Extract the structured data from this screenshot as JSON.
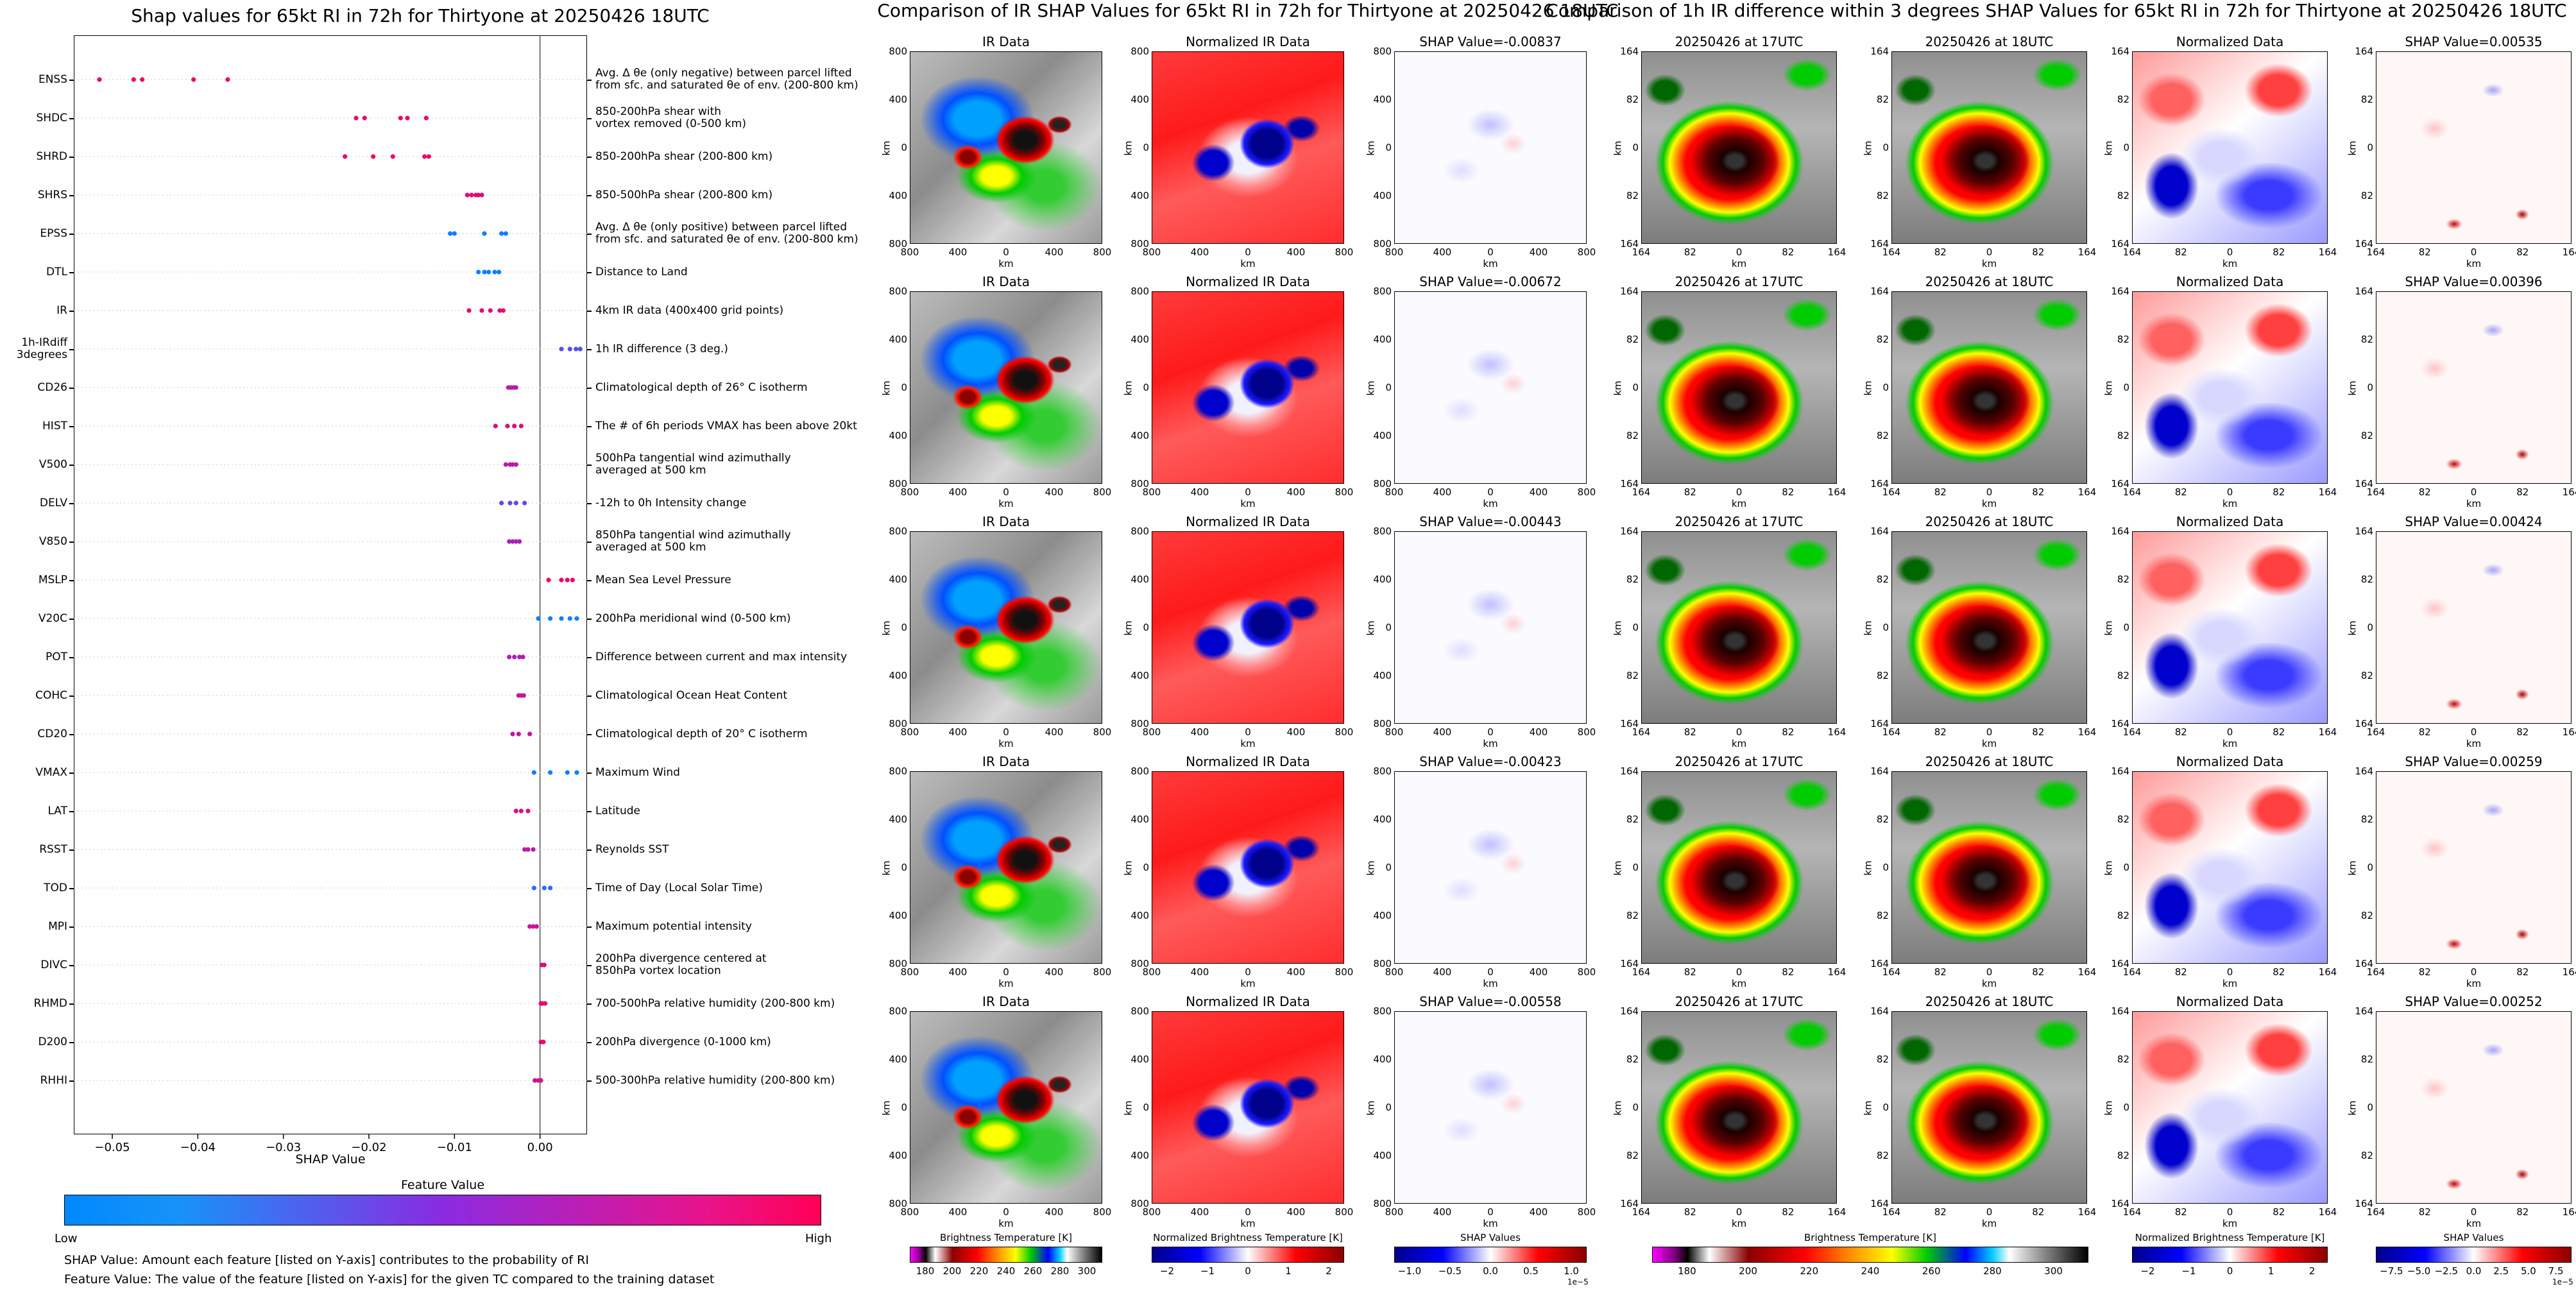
{
  "left": {
    "title": "Shap values for 65kt RI in 72h for Thirtyone at 20250426 18UTC",
    "xlabel": "SHAP Value",
    "xticks": [
      "−0.05",
      "−0.04",
      "−0.03",
      "−0.02",
      "−0.01",
      "0.00"
    ],
    "feature_value_label": "Feature Value",
    "low_label": "Low",
    "high_label": "High",
    "note1": "SHAP Value: Amount each feature [listed on Y-axis] contributes to the probability of RI",
    "note2": "Feature Value: The value of the feature [listed on Y-axis] for the given TC compared to the training dataset",
    "colors": {
      "low": "#1e88e5",
      "mid": "#8a2be2",
      "high": "#ff0052"
    }
  },
  "chart_data": {
    "type": "scatter",
    "title": "Shap values for 65kt RI in 72h for Thirtyone at 20250426 18UTC",
    "xlabel": "SHAP Value",
    "xlim": [
      -0.0545,
      0.0055
    ],
    "features": [
      {
        "name": "ENSS",
        "desc": [
          "Avg. Δ θe (only negative) between parcel lifted",
          "from sfc. and saturated θe of env. (200-800 km)"
        ],
        "values": [
          -0.0515,
          -0.0475,
          -0.0465,
          -0.0405,
          -0.0365
        ],
        "level": 0.95
      },
      {
        "name": "SHDC",
        "desc": [
          "850-200hPa shear with",
          "vortex removed (0-500 km)"
        ],
        "values": [
          -0.0215,
          -0.0205,
          -0.0163,
          -0.0155,
          -0.0133
        ],
        "level": 0.92
      },
      {
        "name": "SHRD",
        "desc": [
          "850-200hPa shear (200-800 km)"
        ],
        "values": [
          -0.0228,
          -0.0195,
          -0.0172,
          -0.0135,
          -0.013
        ],
        "level": 0.92
      },
      {
        "name": "SHRS",
        "desc": [
          "850-500hPa shear (200-800 km)"
        ],
        "values": [
          -0.0085,
          -0.008,
          -0.0075,
          -0.0072,
          -0.0068
        ],
        "level": 0.9
      },
      {
        "name": "EPSS",
        "desc": [
          "Avg. Δ θe (only positive) between parcel lifted",
          "from sfc. and saturated θe of env. (200-800 km)"
        ],
        "values": [
          -0.0105,
          -0.01,
          -0.0065,
          -0.0045,
          -0.004
        ],
        "level": 0.05
      },
      {
        "name": "DTL",
        "desc": [
          "Distance to Land"
        ],
        "values": [
          -0.0072,
          -0.0065,
          -0.006,
          -0.0053,
          -0.0048
        ],
        "level": 0.05
      },
      {
        "name": "IR",
        "desc": [
          "4km IR data (400x400 grid points)"
        ],
        "values": [
          -0.0083,
          -0.0068,
          -0.0058,
          -0.0047,
          -0.0043
        ],
        "level": 0.88
      },
      {
        "name": "1h-IRdiff\n3degrees",
        "desc": [
          "1h IR difference (3 deg.)"
        ],
        "values": [
          0.0025,
          0.0035,
          0.0042,
          0.0047
        ],
        "level": 0.3
      },
      {
        "name": "CD26",
        "desc": [
          "Climatological depth of 26° C isotherm"
        ],
        "values": [
          -0.0037,
          -0.0034,
          -0.0031,
          -0.0028
        ],
        "level": 0.65
      },
      {
        "name": "HIST",
        "desc": [
          "The # of 6h periods VMAX has been above 20kt"
        ],
        "values": [
          -0.0052,
          -0.0038,
          -0.003,
          -0.0022
        ],
        "level": 0.85
      },
      {
        "name": "V500",
        "desc": [
          "500hPa tangential wind azimuthally",
          "averaged at 500 km"
        ],
        "values": [
          -0.004,
          -0.0035,
          -0.0032,
          -0.0028
        ],
        "level": 0.7
      },
      {
        "name": "DELV",
        "desc": [
          "-12h to 0h Intensity change"
        ],
        "values": [
          -0.0045,
          -0.0035,
          -0.0028,
          -0.0018
        ],
        "level": 0.35
      },
      {
        "name": "V850",
        "desc": [
          "850hPa tangential wind azimuthally",
          "averaged at 500 km"
        ],
        "values": [
          -0.0036,
          -0.0032,
          -0.0028,
          -0.0024
        ],
        "level": 0.65
      },
      {
        "name": "MSLP",
        "desc": [
          "Mean Sea Level Pressure"
        ],
        "values": [
          0.001,
          0.0025,
          0.0032,
          0.0038
        ],
        "level": 0.95
      },
      {
        "name": "V20C",
        "desc": [
          "200hPa meridional wind (0-500 km)"
        ],
        "values": [
          -0.0002,
          0.0012,
          0.0025,
          0.0035,
          0.0043
        ],
        "level": 0.05
      },
      {
        "name": "POT",
        "desc": [
          "Difference between current and max intensity"
        ],
        "values": [
          -0.0036,
          -0.003,
          -0.0024,
          -0.002
        ],
        "level": 0.65
      },
      {
        "name": "COHC",
        "desc": [
          "Climatological Ocean Heat Content"
        ],
        "values": [
          -0.0025,
          -0.0022,
          -0.0019
        ],
        "level": 0.75
      },
      {
        "name": "CD20",
        "desc": [
          "Climatological depth of 20° C isotherm"
        ],
        "values": [
          -0.0032,
          -0.0025,
          -0.0012
        ],
        "level": 0.75
      },
      {
        "name": "VMAX",
        "desc": [
          "Maximum Wind"
        ],
        "values": [
          -0.0007,
          0.0012,
          0.0032,
          0.0043
        ],
        "level": 0.05
      },
      {
        "name": "LAT",
        "desc": [
          "Latitude"
        ],
        "values": [
          -0.0028,
          -0.0022,
          -0.0014
        ],
        "level": 0.85
      },
      {
        "name": "RSST",
        "desc": [
          "Reynolds SST"
        ],
        "values": [
          -0.0018,
          -0.0014,
          -0.0008
        ],
        "level": 0.7
      },
      {
        "name": "TOD",
        "desc": [
          "Time of Day (Local Solar Time)"
        ],
        "values": [
          -0.0007,
          0.0005,
          0.0012
        ],
        "level": 0.15
      },
      {
        "name": "MPI",
        "desc": [
          "Maximum potential intensity"
        ],
        "values": [
          -0.0012,
          -0.0008,
          -0.0004
        ],
        "level": 0.75
      },
      {
        "name": "DIVC",
        "desc": [
          "200hPa divergence centered at",
          "850hPa vortex location"
        ],
        "values": [
          0.0002,
          0.0005
        ],
        "level": 0.85
      },
      {
        "name": "RHMD",
        "desc": [
          "700-500hPa relative humidity (200-800 km)"
        ],
        "values": [
          0.0001,
          0.0003,
          0.0006
        ],
        "level": 0.9
      },
      {
        "name": "D200",
        "desc": [
          "200hPa divergence (0-1000 km)"
        ],
        "values": [
          0.0001,
          0.0004
        ],
        "level": 0.9
      },
      {
        "name": "RHHI",
        "desc": [
          "500-300hPa relative humidity (200-800 km)"
        ],
        "values": [
          -0.0006,
          -0.0002,
          0.0001
        ],
        "level": 0.8
      }
    ]
  },
  "mid": {
    "title": "Comparison of IR SHAP Values for 65kt RI in 72h for Thirtyone at 20250426 18UTC",
    "col_titles": [
      "IR Data",
      "Normalized IR Data"
    ],
    "shap_titles": [
      "SHAP Value=-0.00837",
      "SHAP Value=-0.00672",
      "SHAP Value=-0.00443",
      "SHAP Value=-0.00423",
      "SHAP Value=-0.00558"
    ],
    "xticks": [
      "800",
      "400",
      "0",
      "400",
      "800"
    ],
    "yticks": [
      "800",
      "400",
      "0",
      "400",
      "800"
    ],
    "axis_label": "km",
    "cb_labels": [
      "Brightness Temperature [K]",
      "Normalized Brightness Temperature [K]",
      "SHAP Values"
    ],
    "cb_ticks": [
      [
        "180",
        "200",
        "220",
        "240",
        "260",
        "280",
        "300"
      ],
      [
        "−2",
        "−1",
        "0",
        "1",
        "2"
      ],
      [
        "−1.0",
        "−0.5",
        "0.0",
        "0.5",
        "1.0"
      ]
    ],
    "shap_exponent": "1e−5"
  },
  "right": {
    "title": "Comparison of 1h IR difference within 3 degrees SHAP Values for 65kt RI in 72h for Thirtyone at 20250426 18UTC",
    "col_titles": [
      "20250426 at 17UTC",
      "20250426 at 18UTC",
      "Normalized Data"
    ],
    "shap_titles": [
      "SHAP Value=0.00535",
      "SHAP Value=0.00396",
      "SHAP Value=0.00424",
      "SHAP Value=0.00259",
      "SHAP Value=0.00252"
    ],
    "xticks": [
      "164",
      "82",
      "0",
      "82",
      "164"
    ],
    "yticks": [
      "164",
      "82",
      "0",
      "82",
      "164"
    ],
    "axis_label": "km",
    "cb_labels": [
      "Brightness Temperature [K]",
      "Normalized Brightness Temperature [K]",
      "SHAP Values"
    ],
    "cb_ticks": [
      [
        "180",
        "200",
        "220",
        "240",
        "260",
        "280",
        "300"
      ],
      [
        "−2",
        "−1",
        "0",
        "1",
        "2"
      ],
      [
        "−7.5",
        "−5.0",
        "−2.5",
        "0.0",
        "2.5",
        "5.0",
        "7.5"
      ]
    ],
    "shap_exponent": "1e−5"
  }
}
